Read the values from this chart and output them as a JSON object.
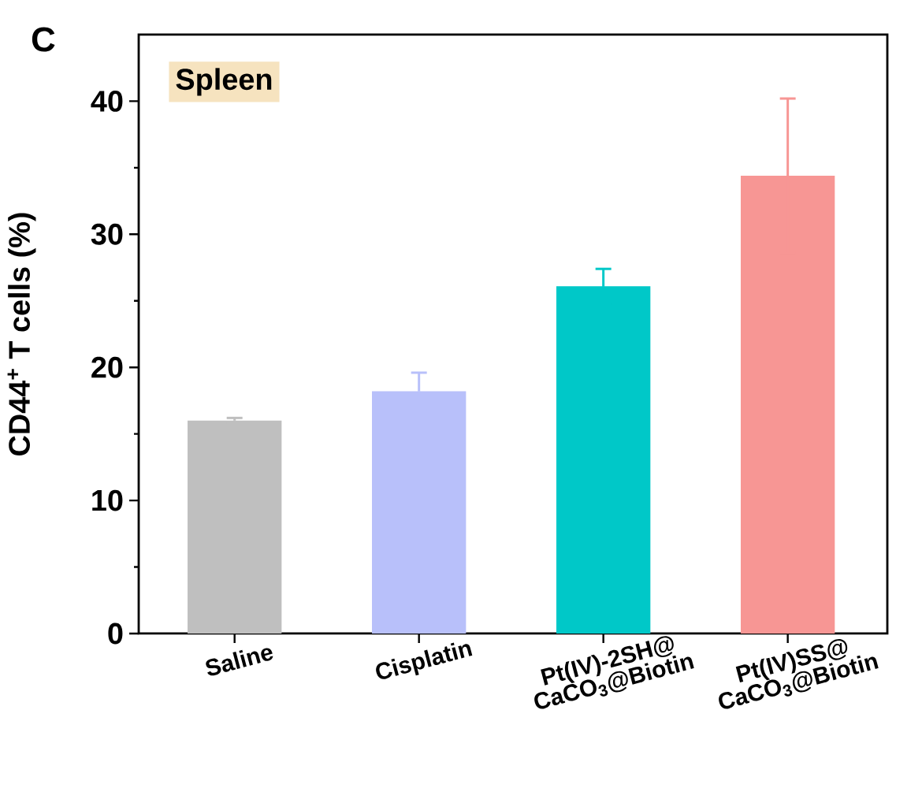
{
  "chart_data": {
    "type": "bar",
    "ylabel": "CD44$^{+}$ T cells (%)",
    "categories": [
      "Saline",
      "Cisplatin",
      "Pt(IV)-2SH@ CaCO$_{3}$@Biotin",
      "Pt(IV)SS@ CaCO$_{3}$@Biotin"
    ],
    "values": [
      16.0,
      18.2,
      26.1,
      34.4
    ],
    "errors": [
      0.2,
      1.4,
      1.3,
      5.8
    ],
    "colors": [
      "#bfbfbf",
      "#b8c0fa",
      "#00c8c8",
      "#f79694"
    ],
    "ylim": [
      0,
      45
    ],
    "yticks": [
      0,
      10,
      20,
      30,
      40
    ],
    "annotations": [
      "C",
      "Spleen"
    ],
    "grid": false
  }
}
